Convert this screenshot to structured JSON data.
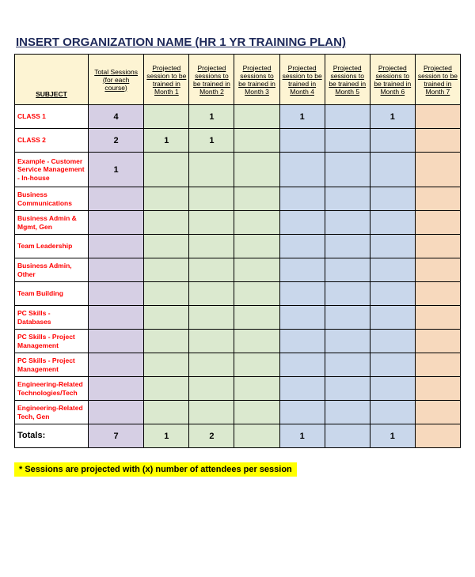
{
  "title": "INSERT ORGANIZATION NAME (HR 1 YR TRAINING PLAN)",
  "headers": {
    "subject": "SUBJECT",
    "total": "Total Sessions (for each course)",
    "months": [
      "Projected session to be trained in Month 1",
      "Projected sessions to be trained in Month 2",
      "Projected sessions to be trained in Month 3",
      "Projected session to be trained in Month 4",
      "Projected sessions to be trained in Month 5",
      "Projected sessions to be trained in Month 6",
      "Projected session to be trained in Month 7"
    ]
  },
  "column_colors": [
    "#d6cfe4",
    "#dbe9cf",
    "#dbe9cf",
    "#dbe9cf",
    "#c9d7eb",
    "#c9d7eb",
    "#c9d7eb",
    "#f7d9bd"
  ],
  "rows": [
    {
      "label": "CLASS 1",
      "total": "4",
      "m": [
        "",
        "1",
        "",
        "1",
        "",
        "1",
        ""
      ]
    },
    {
      "label": "CLASS 2",
      "total": "2",
      "m": [
        "1",
        "1",
        "",
        "",
        "",
        "",
        ""
      ]
    },
    {
      "label": "Example - Customer Service Management - In-house",
      "total": "1",
      "m": [
        "",
        "",
        "",
        "",
        "",
        "",
        ""
      ],
      "tall": true
    },
    {
      "label": "Business Communications",
      "total": "",
      "m": [
        "",
        "",
        "",
        "",
        "",
        "",
        ""
      ]
    },
    {
      "label": "Business Admin & Mgmt, Gen",
      "total": "",
      "m": [
        "",
        "",
        "",
        "",
        "",
        "",
        ""
      ]
    },
    {
      "label": "Team Leadership",
      "total": "",
      "m": [
        "",
        "",
        "",
        "",
        "",
        "",
        ""
      ]
    },
    {
      "label": "Business Admin, Other",
      "total": "",
      "m": [
        "",
        "",
        "",
        "",
        "",
        "",
        ""
      ]
    },
    {
      "label": "Team Building",
      "total": "",
      "m": [
        "",
        "",
        "",
        "",
        "",
        "",
        ""
      ]
    },
    {
      "label": "PC Skills - Databases",
      "total": "",
      "m": [
        "",
        "",
        "",
        "",
        "",
        "",
        ""
      ]
    },
    {
      "label": "PC Skills - Project Management",
      "total": "",
      "m": [
        "",
        "",
        "",
        "",
        "",
        "",
        ""
      ]
    },
    {
      "label": "PC Skills - Project Management",
      "total": "",
      "m": [
        "",
        "",
        "",
        "",
        "",
        "",
        ""
      ]
    },
    {
      "label": "Engineering-Related Technologies/Tech",
      "total": "",
      "m": [
        "",
        "",
        "",
        "",
        "",
        "",
        ""
      ]
    },
    {
      "label": "Engineering-Related Tech, Gen",
      "total": "",
      "m": [
        "",
        "",
        "",
        "",
        "",
        "",
        ""
      ]
    }
  ],
  "totals": {
    "label": "Totals:",
    "total": "7",
    "m": [
      "1",
      "2",
      "",
      "1",
      "",
      "1",
      ""
    ]
  },
  "footnote": "* Sessions are projected with (x) number of attendees per session",
  "colors": {
    "header_bg": "#fdf4d3",
    "subject_text": "#ff0000",
    "title_text": "#1f2a5a",
    "highlight_bg": "#ffff00"
  }
}
